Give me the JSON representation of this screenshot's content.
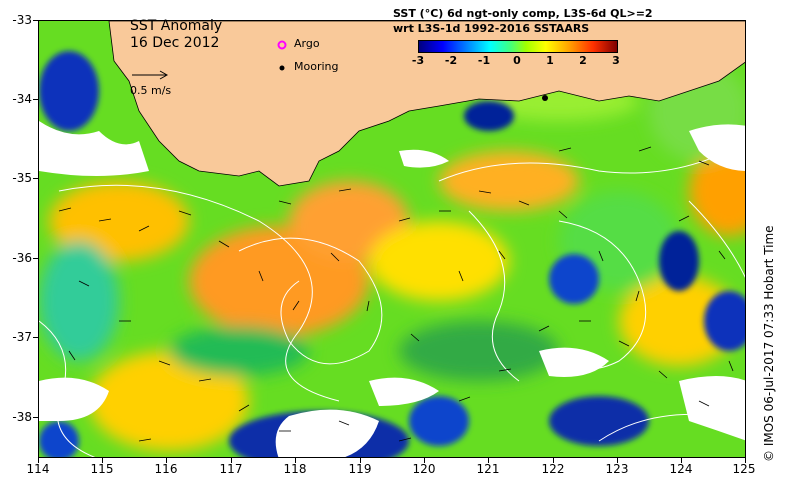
{
  "map": {
    "title": "SST Anomaly",
    "date": "16 Dec 2012",
    "reference_vector_label": "0.5 m/s",
    "legend_argo": "Argo",
    "legend_mooring": "Mooring",
    "colorbar_title_line1": "SST (°C) 6d ngt-only comp, L3S-6d QL>=2",
    "colorbar_title_line2": "wrt L3S-1d 1992-2016 SSTAARS",
    "colorbar_ticks": [
      "-3",
      "-2",
      "-1",
      "0",
      "1",
      "2",
      "3"
    ],
    "credit": "© IMOS 06-Jul-2017 07:33 Hobart Time",
    "lat_ticks": [
      "-33",
      "-34",
      "-35",
      "-36",
      "-37",
      "-38"
    ],
    "lon_ticks": [
      "114",
      "115",
      "116",
      "117",
      "118",
      "119",
      "120",
      "121",
      "122",
      "123",
      "124",
      "125"
    ],
    "colors": {
      "land": "#f9c99a",
      "anomaly_high": "#ffa000",
      "anomaly_mid": "#a0ff00",
      "anomaly_low": "#0000ff",
      "argo": "#ff00ff",
      "mooring": "#000000"
    }
  }
}
